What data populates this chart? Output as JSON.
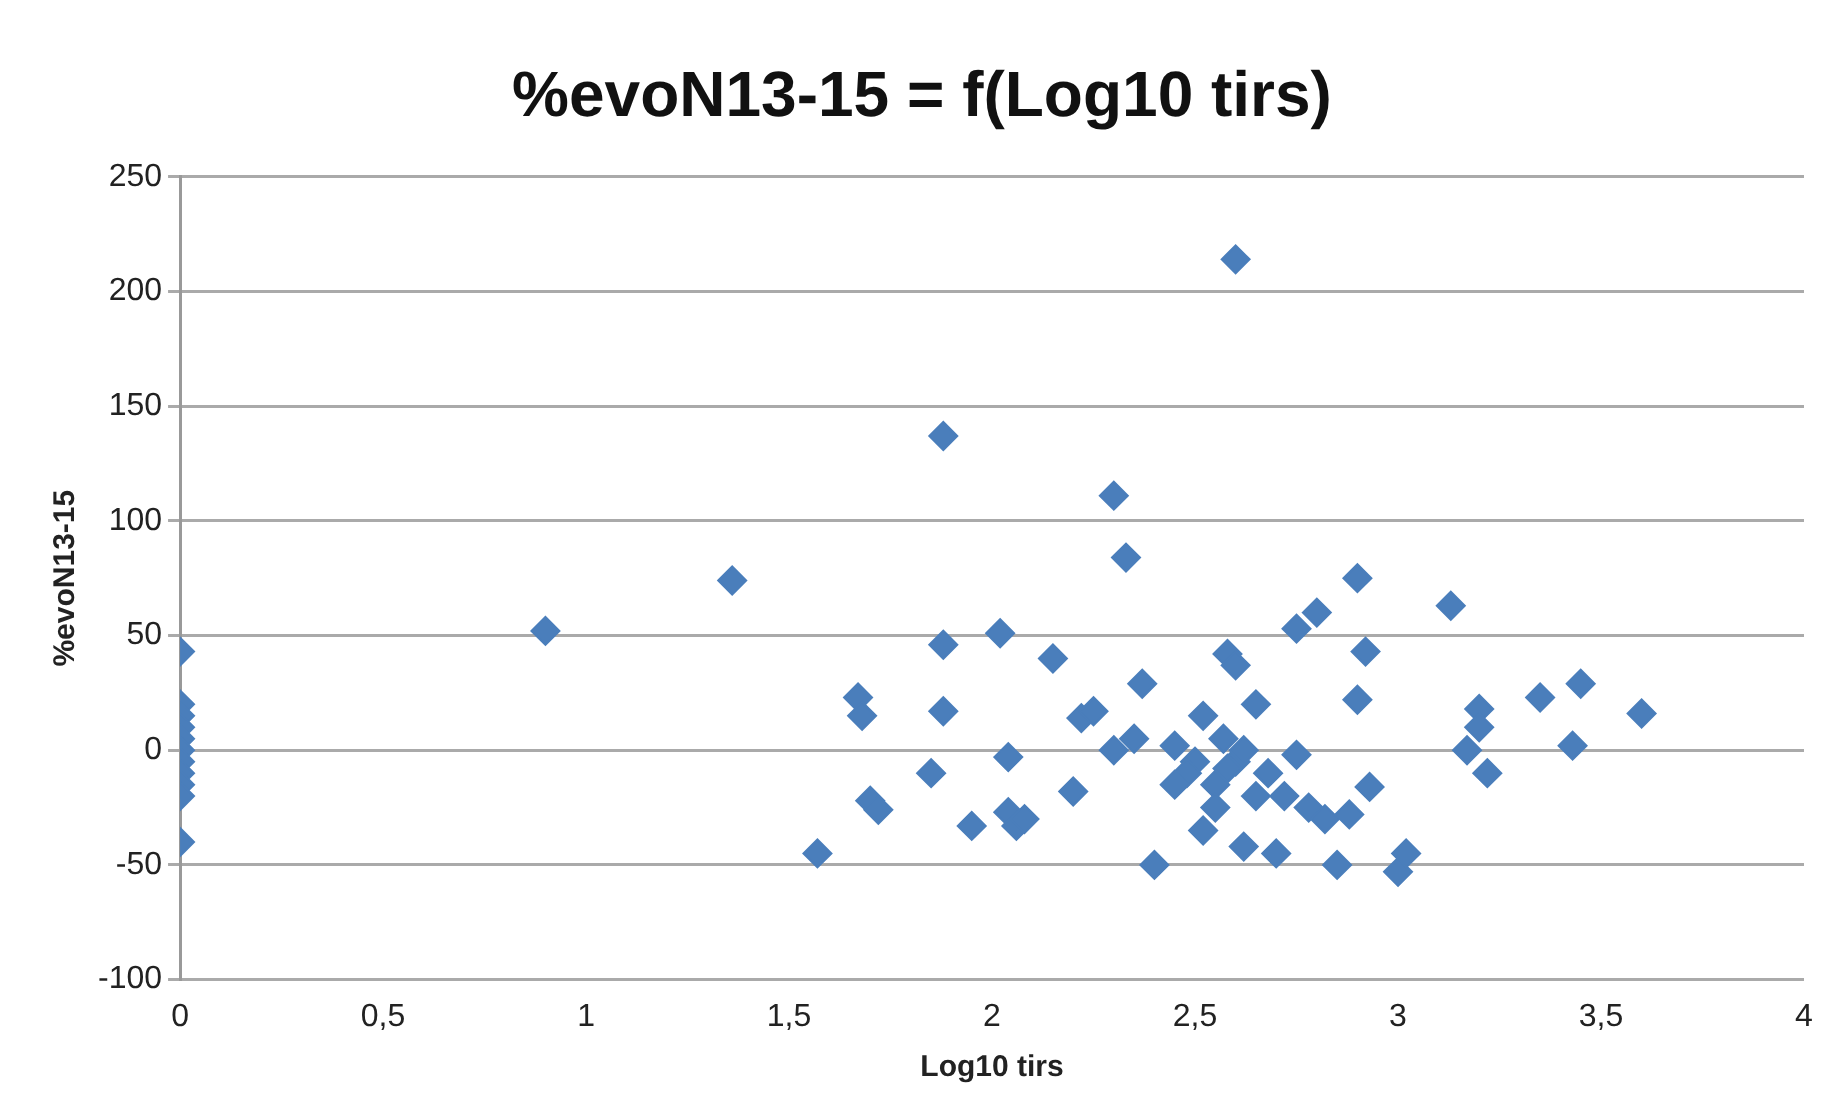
{
  "chart_data": {
    "type": "scatter",
    "title": "%evoN13-15 = f(Log10 tirs)",
    "xlabel": "Log10 tirs",
    "ylabel": "%evoN13-15",
    "x": [
      0,
      0,
      0,
      0,
      0,
      0,
      0,
      0,
      0,
      0,
      0,
      0.9,
      1.36,
      1.57,
      1.67,
      1.68,
      1.7,
      1.72,
      1.85,
      1.88,
      1.88,
      1.88,
      1.95,
      2.02,
      2.04,
      2.04,
      2.06,
      2.08,
      2.15,
      2.2,
      2.22,
      2.25,
      2.3,
      2.33,
      2.37,
      2.4,
      2.3,
      2.35,
      2.45,
      2.5,
      2.52,
      2.55,
      2.58,
      2.6,
      2.6,
      2.62,
      2.65,
      2.7,
      2.72,
      2.75,
      2.75,
      2.8,
      2.85,
      2.9,
      2.9,
      2.92,
      2.93,
      3.0,
      3.02,
      3.13,
      3.17,
      3.2,
      3.2,
      3.22,
      3.35,
      3.43,
      3.45,
      3.6,
      2.48,
      2.55,
      2.57,
      2.6,
      2.62,
      2.65,
      2.68,
      2.78,
      2.82,
      2.88,
      2.45,
      2.52,
      2.58
    ],
    "series": [
      {
        "color": "#4a7ebb",
        "values": [
          43,
          20,
          15,
          10,
          5,
          0,
          -5,
          -10,
          -15,
          -20,
          -40,
          52,
          74,
          -45,
          23,
          15,
          -22,
          -26,
          -10,
          137,
          46,
          17,
          -33,
          51,
          -3,
          -27,
          -33,
          -30,
          40,
          -18,
          14,
          17,
          111,
          84,
          29,
          -50,
          0,
          5,
          2,
          -5,
          15,
          -15,
          42,
          37,
          214,
          -42,
          20,
          -45,
          -20,
          -2,
          53,
          60,
          -50,
          75,
          22,
          43,
          -16,
          -53,
          -45,
          63,
          0,
          18,
          10,
          -10,
          23,
          2,
          29,
          16,
          -10,
          -25,
          5,
          -5,
          0,
          -20,
          -10,
          -25,
          -30,
          -28,
          -15,
          -35,
          -8
        ]
      }
    ],
    "xlim": [
      0,
      4
    ],
    "xticks": [
      0,
      {
        "value": 0.5,
        "label": "0,5"
      },
      1,
      {
        "value": 1.5,
        "label": "1,5"
      },
      2,
      {
        "value": 2.5,
        "label": "2,5"
      },
      3,
      {
        "value": 3.5,
        "label": "3,5"
      },
      4
    ],
    "ylim": [
      -100,
      250
    ],
    "yticks": [
      -100,
      -50,
      0,
      50,
      100,
      150,
      200,
      250
    ],
    "grid": "y",
    "legend": false,
    "marker": "diamond"
  }
}
